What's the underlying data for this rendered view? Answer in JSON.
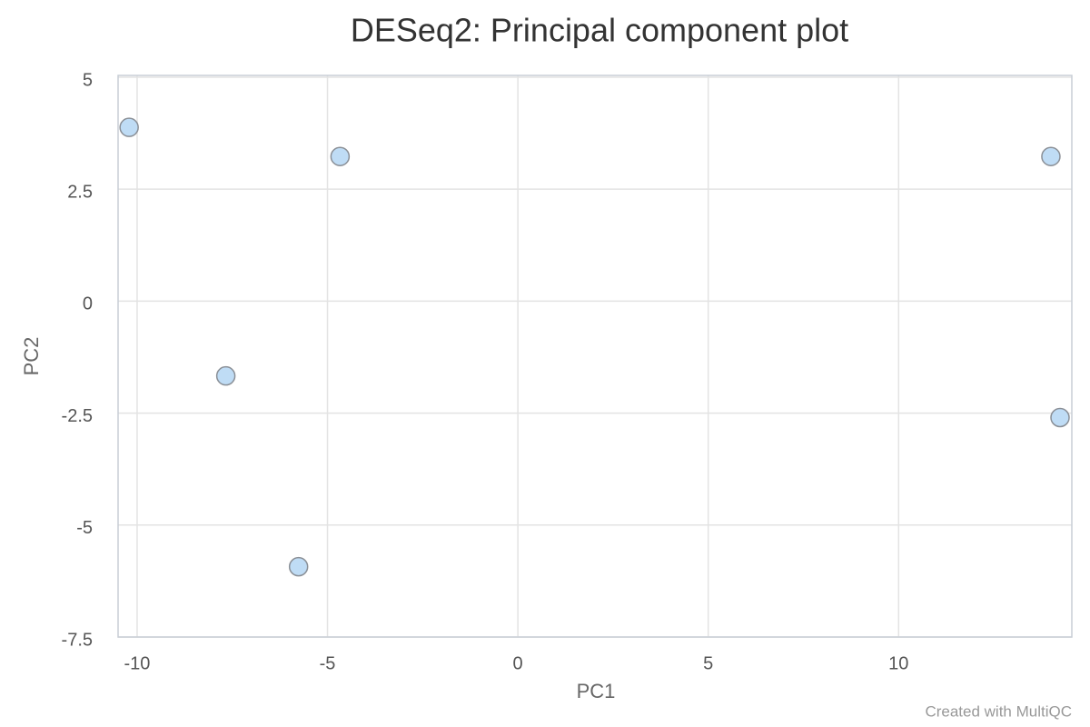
{
  "chart_data": {
    "type": "scatter",
    "title": "DESeq2: Principal component plot",
    "x_label": "PC1",
    "y_label": "PC2",
    "credit": "Created with MultiQC",
    "series": [
      {
        "color": "#bfdcf5",
        "x": [
          -10.21,
          -4.67,
          14.0,
          -7.67,
          14.24,
          -5.76
        ],
        "values": [
          3.88,
          3.23,
          3.23,
          -1.67,
          -2.6,
          -5.93
        ]
      }
    ],
    "xlim": [
      -10.5,
      14.55
    ],
    "xticks": [
      -10,
      -5,
      0,
      5,
      10
    ],
    "ylim": [
      -7.5,
      5.04
    ],
    "yticks": [
      5,
      2.5,
      0,
      -2.5,
      -5,
      -7.5
    ],
    "grid": true
  }
}
